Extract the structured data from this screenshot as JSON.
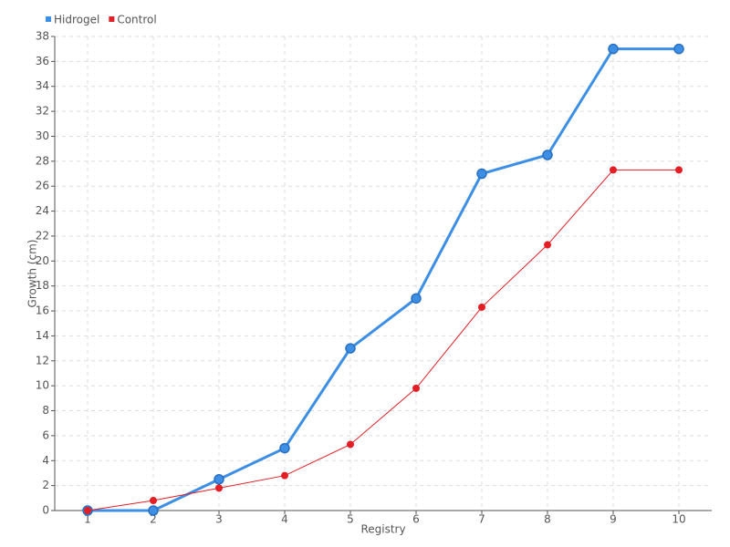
{
  "chart_data": {
    "type": "line",
    "xlabel": "Registry",
    "ylabel": "Growth (cm)",
    "categories": [
      "1",
      "2",
      "3",
      "4",
      "5",
      "6",
      "7",
      "8",
      "9",
      "10"
    ],
    "series": [
      {
        "name": "Hidrogel",
        "color": "#3d8fe6",
        "values": [
          0,
          0,
          2.5,
          5,
          13,
          17,
          27,
          28.5,
          37,
          37
        ]
      },
      {
        "name": "Control",
        "color": "#e31e24",
        "values": [
          0,
          0.8,
          1.8,
          2.8,
          5.3,
          9.8,
          16.3,
          21.3,
          27.3,
          27.3
        ]
      }
    ],
    "ylim": [
      0,
      38
    ],
    "yticks": [
      0,
      2,
      4,
      6,
      8,
      10,
      12,
      14,
      16,
      18,
      20,
      22,
      24,
      26,
      28,
      30,
      32,
      34,
      36,
      38
    ],
    "grid": true,
    "legend": "top-left"
  }
}
